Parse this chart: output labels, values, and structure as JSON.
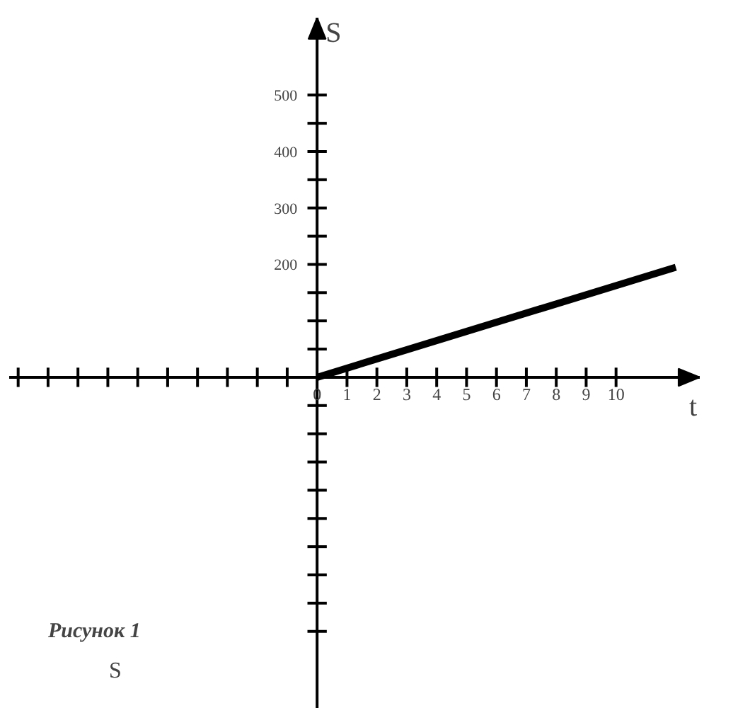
{
  "chart_data": {
    "type": "line",
    "xlabel": "t",
    "ylabel": "S",
    "x": [
      0,
      12
    ],
    "series": [
      {
        "color": "#000000",
        "values": [
          0,
          195
        ]
      }
    ],
    "xlim": [
      -10.3,
      12.8
    ],
    "ylim": [
      -587,
      637
    ],
    "xticks": [
      {
        "value": -10,
        "label": null
      },
      {
        "value": -9,
        "label": null
      },
      {
        "value": -8,
        "label": null
      },
      {
        "value": -7,
        "label": null
      },
      {
        "value": -6,
        "label": null
      },
      {
        "value": -5,
        "label": null
      },
      {
        "value": -4,
        "label": null
      },
      {
        "value": -3,
        "label": null
      },
      {
        "value": -2,
        "label": null
      },
      {
        "value": -1,
        "label": null
      },
      0,
      1,
      2,
      3,
      4,
      5,
      6,
      7,
      8,
      9,
      10
    ],
    "yticks": [
      {
        "value": -450,
        "label": null
      },
      {
        "value": -400,
        "label": null
      },
      {
        "value": -350,
        "label": null
      },
      {
        "value": -300,
        "label": null
      },
      {
        "value": -250,
        "label": null
      },
      {
        "value": -200,
        "label": null
      },
      {
        "value": -150,
        "label": null
      },
      {
        "value": -100,
        "label": null
      },
      {
        "value": -50,
        "label": null
      },
      {
        "value": 50,
        "label": null
      },
      {
        "value": 100,
        "label": null
      },
      {
        "value": 150,
        "label": null
      },
      200,
      {
        "value": 250,
        "label": null
      },
      300,
      {
        "value": 350,
        "label": null
      },
      400,
      {
        "value": 450,
        "label": null
      },
      500
    ],
    "grid": false,
    "marker": "none",
    "line_style": "solid",
    "annotations": [
      "Рисунок 1",
      "S"
    ]
  }
}
